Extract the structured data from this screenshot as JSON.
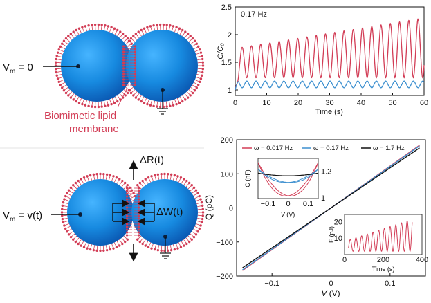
{
  "diagram_top": {
    "vm_label": "V",
    "vm_sub": "m",
    "vm_value": " = 0",
    "membrane_label_line1": "Biomimetic lipid",
    "membrane_label_line2": "membrane",
    "membrane_label_color": "#d23c55"
  },
  "diagram_bottom": {
    "vm_label": "V",
    "vm_sub": "m",
    "vm_value": " = v(t)",
    "dR_label": "ΔR(t)",
    "dW_label": "ΔW(t)"
  },
  "colors": {
    "droplet": "#1a8fe0",
    "droplet_dark": "#0a5fb8",
    "lipid": "#d23c55",
    "red": "#d23c55",
    "blue": "#3c8fcf",
    "black": "#111111"
  },
  "chart_data": [
    {
      "type": "line",
      "annotation": "0.17 Hz",
      "xlabel": "Time (s)",
      "ylabel": "C/C₀",
      "xlim": [
        0,
        60
      ],
      "ylim": [
        0.9,
        2.5
      ],
      "xticks": [
        "0",
        "10",
        "20",
        "30",
        "40",
        "50",
        "60"
      ],
      "yticks": [
        "1",
        "1.5",
        "2",
        "2.5"
      ],
      "series": [
        {
          "color": "#d23c55",
          "baseline": 1.0,
          "peak_start": 1.75,
          "peak_end": 2.3,
          "trough": 1.22,
          "frequency_hz": 0.34
        },
        {
          "color": "#3c8fcf",
          "baseline": 1.1,
          "amplitude": 0.06,
          "frequency_hz": 0.34
        }
      ]
    },
    {
      "type": "line",
      "xlabel": "V (V)",
      "ylabel": "Q (pC)",
      "xlim": [
        -0.16,
        0.16
      ],
      "ylim": [
        -200,
        200
      ],
      "xticks": [
        "−0.1",
        "0",
        "0.1"
      ],
      "yticks": [
        "−200",
        "−100",
        "0",
        "100",
        "200"
      ],
      "legend_position": "top",
      "series": [
        {
          "name": "ω = 0.017 Hz",
          "color": "#d23c55",
          "x": [
            -0.15,
            0.15
          ],
          "y": [
            -190,
            190
          ]
        },
        {
          "name": "ω = 0.17 Hz",
          "color": "#3c8fcf",
          "x": [
            -0.15,
            0.15
          ],
          "y": [
            -182,
            182
          ]
        },
        {
          "name": "ω = 1.7 Hz",
          "color": "#111111",
          "x": [
            -0.15,
            0.15
          ],
          "y": [
            -172,
            172
          ]
        }
      ]
    },
    {
      "type": "line",
      "xlabel": "V (V)",
      "ylabel": "C (nF)",
      "xlim": [
        -0.15,
        0.15
      ],
      "ylim": [
        1.0,
        1.3
      ],
      "xticks": [
        "−0.1",
        "0",
        "0.1"
      ],
      "yticks": [
        "1",
        "1.2"
      ],
      "series": [
        {
          "color": "#d23c55",
          "min": 1.02,
          "max": 1.27
        },
        {
          "color": "#3c8fcf",
          "min": 1.12,
          "max": 1.22
        },
        {
          "color": "#111111",
          "min": 1.17,
          "max": 1.19
        }
      ]
    },
    {
      "type": "line",
      "xlabel": "Time (s)",
      "ylabel": "E (pJ)",
      "xlim": [
        0,
        400
      ],
      "ylim": [
        0,
        25
      ],
      "xticks": [
        "0",
        "200",
        "400"
      ],
      "yticks": [
        "10",
        "20"
      ],
      "series": [
        {
          "color": "#d23c55",
          "peak_start": 9,
          "peak_end": 22,
          "frequency_hz": 0.034
        }
      ]
    }
  ]
}
